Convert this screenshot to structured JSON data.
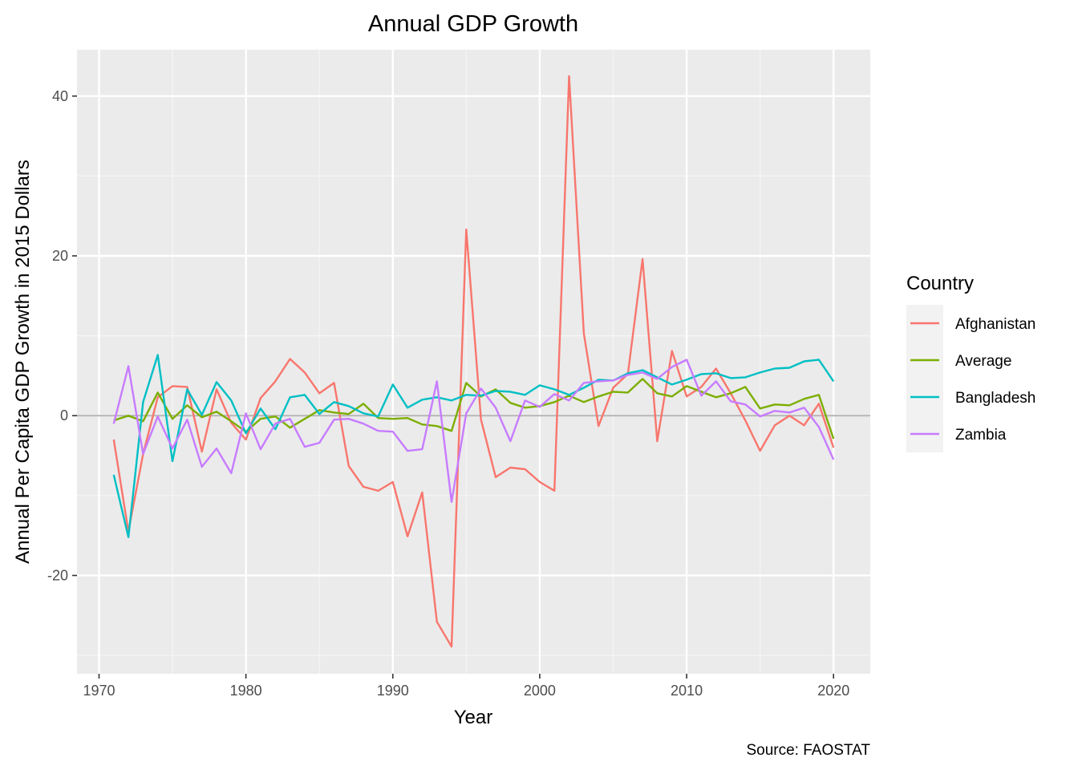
{
  "chart_data": {
    "type": "line",
    "title": "Annual GDP Growth",
    "xlabel": "Year",
    "ylabel": "Annual Per Capita GDP Growth in 2015 Dollars",
    "caption": "Source: FAOSTAT",
    "legend_title": "Country",
    "legend_position": "right",
    "grid": true,
    "reference_line_y": 0,
    "xlim": [
      1968.5,
      2022.5
    ],
    "ylim": [
      -32.3,
      45.8
    ],
    "x_ticks": [
      1970,
      1980,
      1990,
      2000,
      2010,
      2020
    ],
    "y_ticks": [
      -20,
      0,
      20,
      40
    ],
    "x": [
      1971,
      1972,
      1973,
      1974,
      1975,
      1976,
      1977,
      1978,
      1979,
      1980,
      1981,
      1982,
      1983,
      1984,
      1985,
      1986,
      1987,
      1988,
      1989,
      1990,
      1991,
      1992,
      1993,
      1994,
      1995,
      1996,
      1997,
      1998,
      1999,
      2000,
      2001,
      2002,
      2003,
      2004,
      2005,
      2006,
      2007,
      2008,
      2009,
      2010,
      2011,
      2012,
      2013,
      2014,
      2015,
      2016,
      2017,
      2018,
      2019,
      2020
    ],
    "series": [
      {
        "name": "Afghanistan",
        "color": "#F8766D",
        "values": [
          -3.0,
          -14.5,
          -4.8,
          2.3,
          3.7,
          3.6,
          -4.5,
          3.3,
          -0.9,
          -3.0,
          2.2,
          4.3,
          7.1,
          5.4,
          2.8,
          4.1,
          -6.3,
          -8.9,
          -9.4,
          -8.3,
          -15.1,
          -9.6,
          -25.8,
          -28.9,
          23.3,
          -0.5,
          -7.7,
          -6.5,
          -6.7,
          -8.3,
          -9.4,
          42.5,
          10.3,
          -1.3,
          3.5,
          5.2,
          19.6,
          -3.2,
          8.1,
          2.4,
          3.6,
          5.9,
          2.8,
          -0.6,
          -4.4,
          -1.2,
          0.0,
          -1.2,
          1.5,
          -4.0
        ]
      },
      {
        "name": "Average",
        "color": "#7CAE00",
        "values": [
          -0.6,
          0.0,
          -0.7,
          2.9,
          -0.4,
          1.3,
          -0.2,
          0.5,
          -0.7,
          -2.0,
          -0.4,
          -0.1,
          -1.5,
          -0.4,
          0.7,
          0.4,
          0.2,
          1.5,
          -0.3,
          -0.4,
          -0.3,
          -1.1,
          -1.3,
          -1.9,
          4.1,
          2.4,
          3.3,
          1.6,
          1.0,
          1.2,
          1.7,
          2.5,
          1.7,
          2.4,
          3.0,
          2.9,
          4.6,
          2.8,
          2.4,
          3.7,
          3.0,
          2.3,
          2.8,
          3.6,
          0.9,
          1.4,
          1.3,
          2.1,
          2.6,
          -2.9
        ]
      },
      {
        "name": "Bangladesh",
        "color": "#00BFC4",
        "values": [
          -7.4,
          -15.2,
          1.7,
          7.6,
          -5.7,
          3.3,
          0.1,
          4.2,
          1.9,
          -2.2,
          0.9,
          -1.7,
          2.3,
          2.6,
          0.2,
          1.7,
          1.2,
          0.3,
          -0.1,
          3.9,
          1.0,
          2.0,
          2.3,
          1.9,
          2.6,
          2.5,
          3.1,
          3.0,
          2.6,
          3.8,
          3.3,
          2.6,
          3.5,
          4.5,
          4.4,
          5.3,
          5.7,
          4.8,
          3.9,
          4.5,
          5.2,
          5.3,
          4.7,
          4.8,
          5.4,
          5.9,
          6.0,
          6.8,
          7.0,
          4.3
        ]
      },
      {
        "name": "Zambia",
        "color": "#C77CFF",
        "values": [
          -1.0,
          6.2,
          -4.8,
          -0.1,
          -4.1,
          -0.5,
          -6.4,
          -4.1,
          -7.2,
          0.3,
          -4.2,
          -1.0,
          -0.4,
          -3.9,
          -3.4,
          -0.5,
          -0.4,
          -1.0,
          -1.9,
          -2.0,
          -4.4,
          -4.2,
          4.3,
          -10.8,
          0.3,
          3.4,
          1.0,
          -3.2,
          1.9,
          1.1,
          2.7,
          1.9,
          4.1,
          4.3,
          4.4,
          5.1,
          5.4,
          4.6,
          6.1,
          7.0,
          2.5,
          4.3,
          1.8,
          1.4,
          -0.1,
          0.6,
          0.4,
          1.0,
          -1.4,
          -5.5
        ]
      }
    ]
  }
}
